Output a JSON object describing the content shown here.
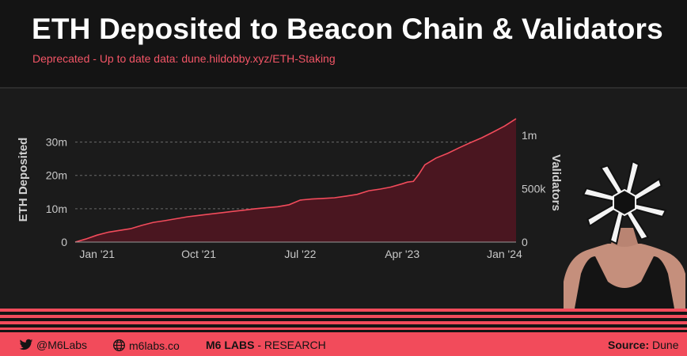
{
  "header": {
    "title": "ETH Deposited to Beacon Chain & Validators",
    "subtitle": "Deprecated - Up to date data: dune.hildobby.xyz/ETH-Staking"
  },
  "footer": {
    "twitter_handle": "@M6Labs",
    "website": "m6labs.co",
    "brand": "M6 LABS",
    "brand_suffix": " - RESEARCH",
    "source_label": "Source:",
    "source_value": " Dune",
    "twitter_icon": "twitter-bird-icon",
    "globe_icon": "globe-icon"
  },
  "colors": {
    "accent": "#f24b5b",
    "area_fill": "#4a1620",
    "line": "#f24b5b",
    "background": "#141414",
    "plot_background": "#1b1b1b"
  },
  "chart_data": {
    "type": "area",
    "title": "",
    "ylabel": "ETH Deposited",
    "y2label": "Validators",
    "x": [
      "2020-11-03",
      "2020-12-01",
      "2021-01-01",
      "2021-02-01",
      "2021-03-01",
      "2021-04-01",
      "2021-05-01",
      "2021-06-01",
      "2021-07-01",
      "2021-08-01",
      "2021-09-01",
      "2021-10-01",
      "2021-11-01",
      "2021-12-01",
      "2022-01-01",
      "2022-02-01",
      "2022-03-01",
      "2022-04-01",
      "2022-05-01",
      "2022-06-01",
      "2022-07-01",
      "2022-08-01",
      "2022-09-01",
      "2022-10-01",
      "2022-11-01",
      "2022-12-01",
      "2023-01-01",
      "2023-02-01",
      "2023-03-01",
      "2023-04-01",
      "2023-04-15",
      "2023-05-01",
      "2023-05-15",
      "2023-06-01",
      "2023-07-01",
      "2023-08-01",
      "2023-09-01",
      "2023-10-01",
      "2023-11-01",
      "2023-12-01",
      "2024-01-01",
      "2024-02-01"
    ],
    "series": [
      {
        "values": [
          0.0,
          0.9,
          2.1,
          3.0,
          3.5,
          4.0,
          5.0,
          5.9,
          6.4,
          7.0,
          7.6,
          8.0,
          8.4,
          8.8,
          9.2,
          9.6,
          10.0,
          10.3,
          10.6,
          11.2,
          12.6,
          12.9,
          13.1,
          13.3,
          13.8,
          14.3,
          15.4,
          15.9,
          16.5,
          17.5,
          18.0,
          18.2,
          20.2,
          23.2,
          25.2,
          26.6,
          28.3,
          29.8,
          31.3,
          33.0,
          34.8,
          37.0
        ]
      }
    ],
    "xticks": [
      "Jan '21",
      "Oct '21",
      "Jul '22",
      "Apr '23",
      "Jan '24"
    ],
    "xtick_positions": [
      "2021-01-01",
      "2021-10-01",
      "2022-07-01",
      "2023-04-01",
      "2024-01-01"
    ],
    "yticks_left": [
      "0",
      "10m",
      "20m",
      "30m"
    ],
    "ytick_values_left": [
      0,
      10,
      20,
      30
    ],
    "yticks_right": [
      "0",
      "500k",
      "1m"
    ],
    "ytick_values_right": [
      0,
      500000,
      1000000
    ],
    "ylim": [
      0,
      37.5
    ],
    "y2lim": [
      0,
      1170000
    ],
    "y_unit": "millions of ETH",
    "grid": "horizontal dashed"
  }
}
